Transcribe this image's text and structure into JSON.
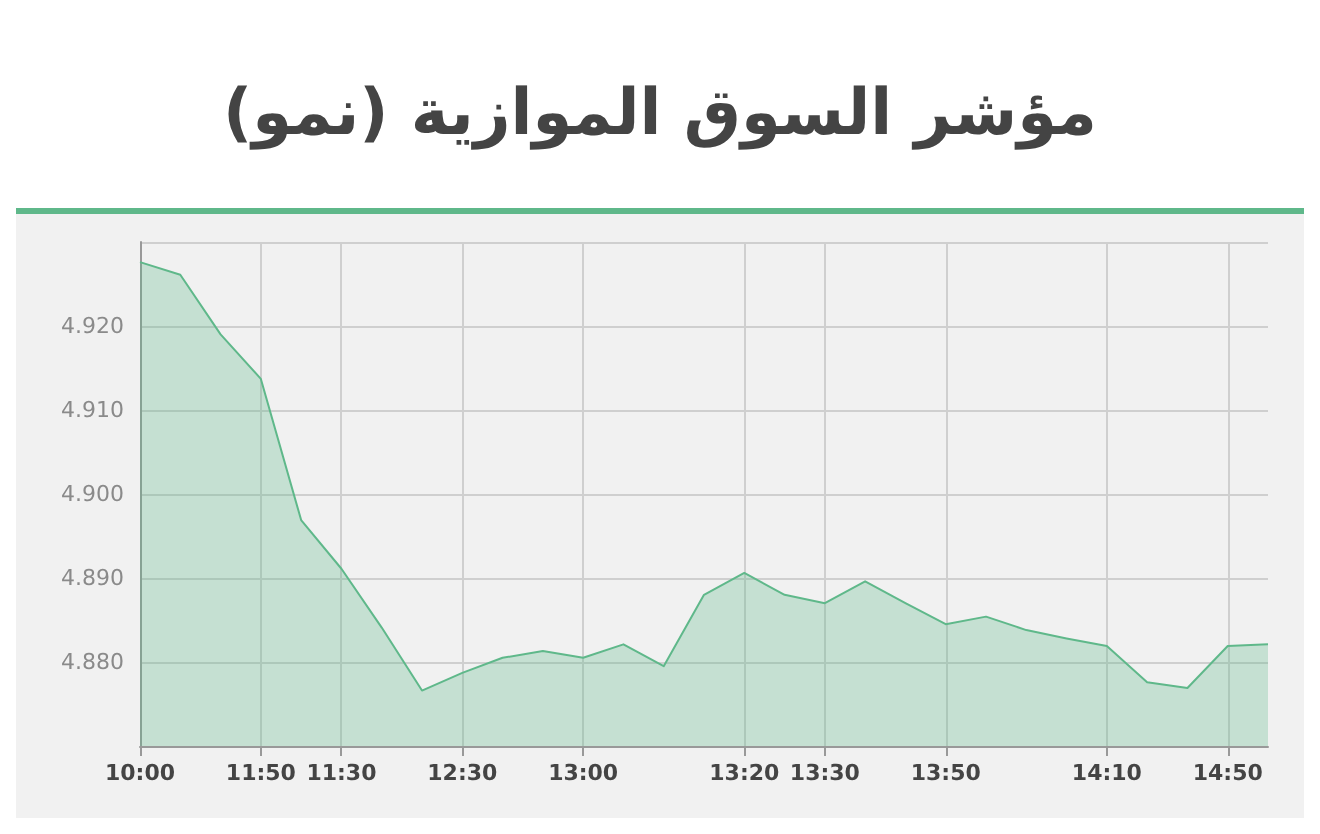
{
  "chart_data": {
    "type": "area",
    "title": "مؤشر السوق الموازية (نمو)",
    "categories": [
      "10:00",
      null,
      null,
      "11:50",
      null,
      "11:30",
      null,
      null,
      "12:30",
      null,
      null,
      "13:00",
      null,
      null,
      null,
      "13:20",
      null,
      "13:30",
      null,
      null,
      "13:50",
      null,
      null,
      null,
      "14:10",
      null,
      null,
      "14:50",
      null
    ],
    "series": [
      {
        "color": "#5fb88a",
        "values": [
          4.9276,
          4.9261,
          4.919,
          4.9137,
          4.8969,
          4.8911,
          4.8841,
          4.8766,
          4.8787,
          4.8805,
          4.8813,
          4.8805,
          4.8821,
          4.8795,
          4.888,
          4.8906,
          4.888,
          4.887,
          4.8896,
          4.887,
          4.8845,
          4.8854,
          4.8838,
          4.8828,
          4.8819,
          4.8776,
          4.8769,
          4.8819,
          4.8821
        ]
      }
    ],
    "ylim": [
      4.87,
      4.93
    ],
    "yticks": [
      {
        "value": 4.87,
        "label": null
      },
      {
        "value": 4.88,
        "label": "4.880"
      },
      {
        "value": 4.89,
        "label": "4.890"
      },
      {
        "value": 4.9,
        "label": "4.900"
      },
      {
        "value": 4.91,
        "label": "4.910"
      },
      {
        "value": 4.92,
        "label": "4.920"
      },
      {
        "value": 4.93,
        "label": null
      }
    ],
    "grid": true,
    "marker": "none"
  }
}
